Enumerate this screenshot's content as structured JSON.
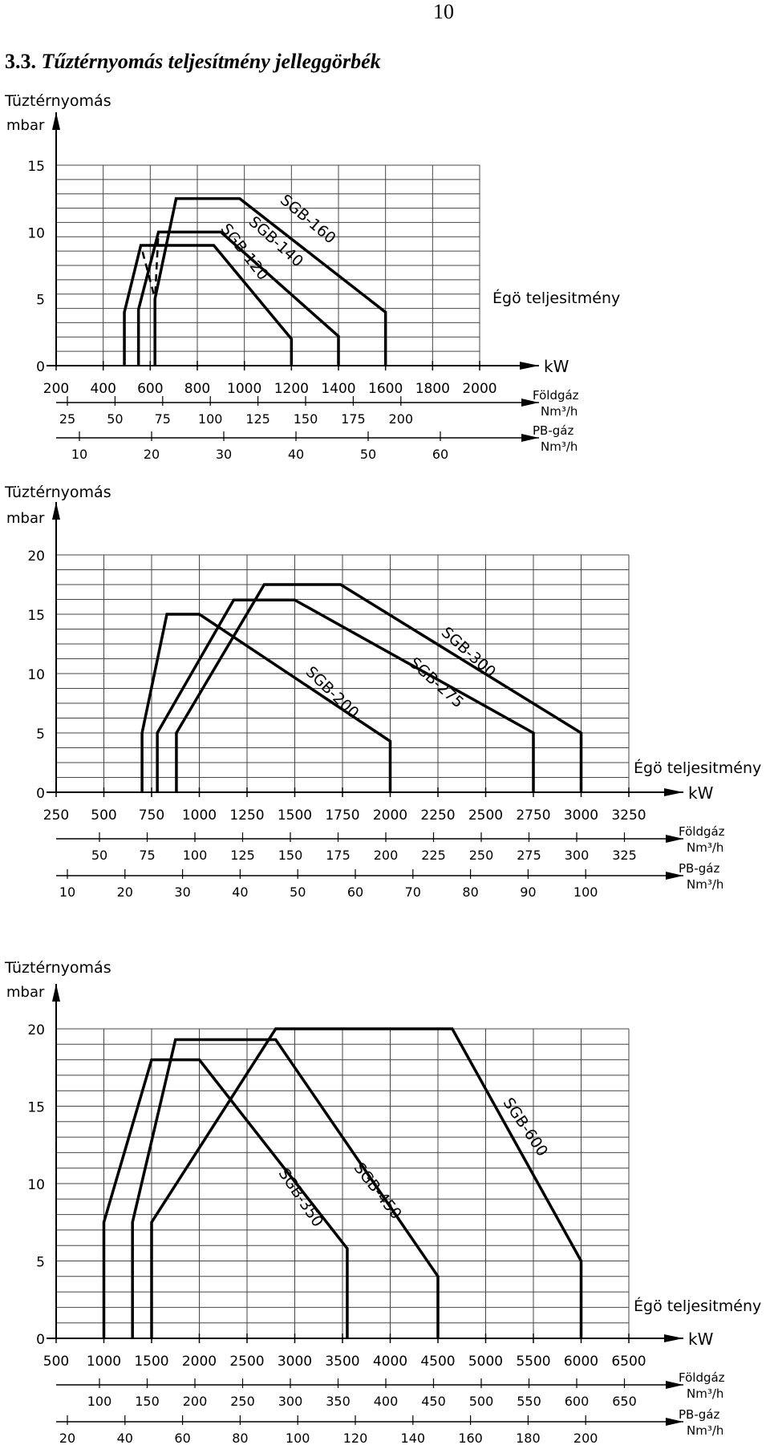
{
  "page_number": "10",
  "section": {
    "number": "3.3.",
    "title": "Tűztérnyomás teljesítmény jelleggörbék"
  },
  "chart_data": [
    {
      "type": "line",
      "ylabel": "Tüztérnyomás",
      "yunit": "mbar",
      "xlabel": "Égö teljesitmény",
      "xunit": "kW",
      "ylim": [
        0,
        15
      ],
      "yticks": [
        0,
        5,
        10,
        15
      ],
      "xlim": [
        200,
        2000
      ],
      "xticks": [
        200,
        400,
        600,
        800,
        1000,
        1200,
        1400,
        1600,
        1800,
        2000
      ],
      "grid": true,
      "secondary_axes": [
        {
          "label": "Földgáz",
          "unit": "Nm³/h",
          "ticks": [
            25,
            50,
            75,
            100,
            125,
            150,
            175,
            200
          ]
        },
        {
          "label": "PB-gáz",
          "unit": "Nm³/h",
          "ticks": [
            10,
            20,
            30,
            40,
            50,
            60
          ]
        }
      ],
      "series": [
        {
          "name": "SGB-120",
          "points": [
            [
              490,
              0
            ],
            [
              490,
              4
            ],
            [
              560,
              9
            ],
            [
              870,
              9
            ],
            [
              1200,
              2
            ],
            [
              1200,
              0
            ]
          ],
          "start_dash": [
            [
              620,
              0
            ],
            [
              620,
              5
            ],
            [
              560,
              9
            ]
          ]
        },
        {
          "name": "SGB-140",
          "points": [
            [
              550,
              0
            ],
            [
              550,
              4.2
            ],
            [
              635,
              10
            ],
            [
              900,
              10
            ],
            [
              1400,
              2.2
            ],
            [
              1400,
              0
            ]
          ],
          "start_dash": [
            [
              620,
              0
            ],
            [
              620,
              5
            ],
            [
              635,
              10
            ]
          ]
        },
        {
          "name": "SGB-160",
          "points": [
            [
              620,
              0
            ],
            [
              620,
              5
            ],
            [
              710,
              12.5
            ],
            [
              980,
              12.5
            ],
            [
              1600,
              4
            ],
            [
              1600,
              0
            ]
          ],
          "start_dash": []
        }
      ],
      "annotations": [
        "SGB-120",
        "SGB-140",
        "SGB-160"
      ]
    },
    {
      "type": "line",
      "ylabel": "Tüztérnyomás",
      "yunit": "mbar",
      "xlabel": "Égö teljesitmény",
      "xunit": "kW",
      "ylim": [
        0,
        20
      ],
      "yticks": [
        0,
        5,
        10,
        15,
        20
      ],
      "xlim": [
        250,
        3250
      ],
      "xticks": [
        250,
        500,
        750,
        1000,
        1250,
        1500,
        1750,
        2000,
        2250,
        2500,
        2750,
        3000,
        3250
      ],
      "grid": true,
      "secondary_axes": [
        {
          "label": "Földgáz",
          "unit": "Nm³/h",
          "ticks": [
            50,
            75,
            100,
            125,
            150,
            175,
            200,
            225,
            250,
            275,
            300,
            325
          ]
        },
        {
          "label": "PB-gáz",
          "unit": "Nm³/h",
          "ticks": [
            10,
            20,
            30,
            40,
            50,
            60,
            70,
            80,
            90,
            100
          ]
        }
      ],
      "series": [
        {
          "name": "SGB-200",
          "points": [
            [
              700,
              0
            ],
            [
              700,
              5
            ],
            [
              830,
              15
            ],
            [
              1000,
              15
            ],
            [
              2000,
              4.3
            ],
            [
              2000,
              0
            ]
          ],
          "start_dash": []
        },
        {
          "name": "SGB-275",
          "points": [
            [
              780,
              0
            ],
            [
              780,
              5
            ],
            [
              1180,
              16.2
            ],
            [
              1500,
              16.2
            ],
            [
              2750,
              5
            ],
            [
              2750,
              0
            ]
          ],
          "start_dash": []
        },
        {
          "name": "SGB-300",
          "points": [
            [
              880,
              0
            ],
            [
              880,
              5
            ],
            [
              1340,
              17.5
            ],
            [
              1740,
              17.5
            ],
            [
              3000,
              5
            ],
            [
              3000,
              0
            ]
          ],
          "start_dash": []
        }
      ],
      "annotations": [
        "SGB-200",
        "SGB-275",
        "SGB-300"
      ]
    },
    {
      "type": "line",
      "ylabel": "Tüztérnyomás",
      "yunit": "mbar",
      "xlabel": "Égö teljesitmény",
      "xunit": "kW",
      "ylim": [
        0,
        20
      ],
      "yticks": [
        0,
        5,
        10,
        15,
        20
      ],
      "xlim": [
        500,
        6500
      ],
      "xticks": [
        500,
        1000,
        1500,
        2000,
        2500,
        3000,
        3500,
        4000,
        4500,
        5000,
        5500,
        6000,
        6500
      ],
      "grid": true,
      "secondary_axes": [
        {
          "label": "Földgáz",
          "unit": "Nm³/h",
          "ticks": [
            100,
            150,
            200,
            250,
            300,
            350,
            400,
            450,
            500,
            550,
            600,
            650
          ]
        },
        {
          "label": "PB-gáz",
          "unit": "Nm³/h",
          "ticks": [
            20,
            40,
            60,
            80,
            100,
            120,
            140,
            160,
            180,
            200
          ]
        }
      ],
      "series": [
        {
          "name": "SGB-350",
          "points": [
            [
              1000,
              0
            ],
            [
              1000,
              7.5
            ],
            [
              1500,
              18
            ],
            [
              2000,
              18
            ],
            [
              3550,
              5.8
            ],
            [
              3550,
              0
            ]
          ],
          "start_dash": []
        },
        {
          "name": "SGB-450",
          "points": [
            [
              1300,
              0
            ],
            [
              1300,
              7.5
            ],
            [
              1750,
              19.3
            ],
            [
              2800,
              19.3
            ],
            [
              4500,
              4
            ],
            [
              4500,
              0
            ]
          ],
          "start_dash": []
        },
        {
          "name": "SGB-600",
          "points": [
            [
              1500,
              0
            ],
            [
              1500,
              7.5
            ],
            [
              2800,
              20
            ],
            [
              4650,
              20
            ],
            [
              6000,
              5
            ],
            [
              6000,
              0
            ]
          ],
          "start_dash": []
        }
      ],
      "annotations": [
        "SGB-350",
        "SGB-450",
        "SGB-600"
      ]
    }
  ]
}
